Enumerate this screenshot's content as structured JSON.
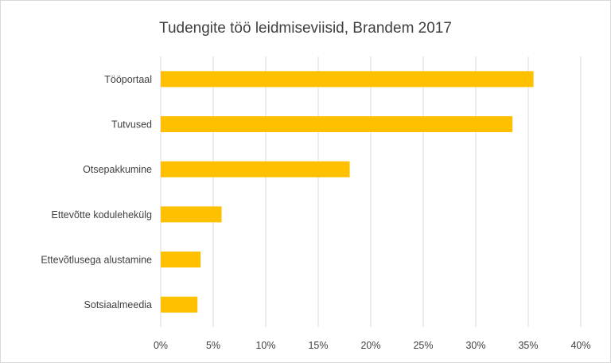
{
  "chart_data": {
    "type": "bar",
    "orientation": "horizontal",
    "title": "Tudengite töö leidmiseviisid, Brandem 2017",
    "xlabel": "",
    "ylabel": "",
    "categories": [
      "Tööportaal",
      "Tutvused",
      "Otsepakkumine",
      "Ettevõtte kodulehekülg",
      "Ettevõtlusega alustamine",
      "Sotsiaalmeedia"
    ],
    "values": [
      35.5,
      33.5,
      18,
      5.8,
      3.8,
      3.5
    ],
    "value_unit": "%",
    "xlim": [
      0,
      40
    ],
    "ticks": [
      "0%",
      "5%",
      "10%",
      "15%",
      "20%",
      "25%",
      "30%",
      "35%",
      "40%"
    ],
    "tick_values": [
      0,
      5,
      10,
      15,
      20,
      25,
      30,
      35,
      40
    ],
    "grid": true,
    "legend": "none",
    "bar_color": "#FFC000",
    "grid_color": "#d9d9d9",
    "text_color": "#404040"
  }
}
